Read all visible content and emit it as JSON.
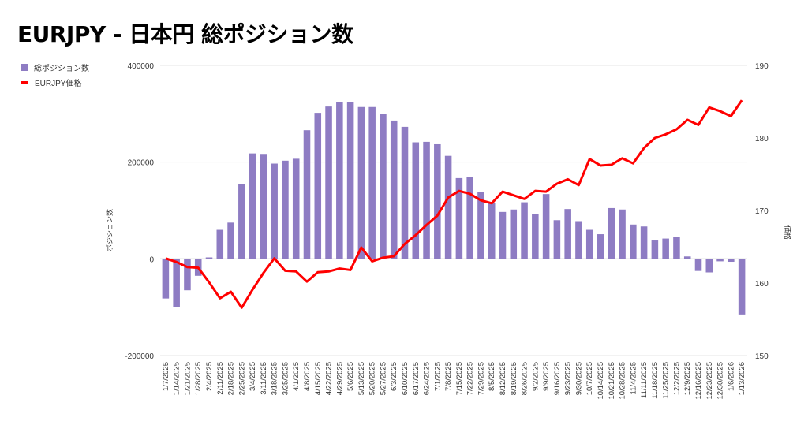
{
  "title": "EURJPY - 日本円 総ポジション数",
  "chart_data": {
    "type": "bar+line",
    "title": "EURJPY - 日本円 総ポジション数",
    "legend_position": "left",
    "ylabel_left": "ポジション数",
    "ylabel_right": "価格",
    "ylim_left": [
      -200000,
      400000
    ],
    "yticks_left": [
      "400000",
      "200000",
      "0",
      "-200000"
    ],
    "ylim_right": [
      150,
      190
    ],
    "yticks_right": [
      "190",
      "180",
      "170",
      "160",
      "150"
    ],
    "categories": [
      "1/7/2025",
      "1/14/2025",
      "1/21/2025",
      "1/28/2025",
      "2/4/2025",
      "2/11/2025",
      "2/18/2025",
      "2/25/2025",
      "3/4/2025",
      "3/11/2025",
      "3/18/2025",
      "3/25/2025",
      "4/1/2025",
      "4/8/2025",
      "4/15/2025",
      "4/22/2025",
      "4/29/2025",
      "5/6/2025",
      "5/13/2025",
      "5/20/2025",
      "5/27/2025",
      "6/3/2025",
      "6/10/2025",
      "6/17/2025",
      "6/24/2025",
      "7/1/2025",
      "7/8/2025",
      "7/15/2025",
      "7/22/2025",
      "7/29/2025",
      "8/5/2025",
      "8/12/2025",
      "8/19/2025",
      "8/26/2025",
      "9/2/2025",
      "9/9/2025",
      "9/16/2025",
      "9/23/2025",
      "9/30/2025",
      "10/7/2025",
      "10/14/2025",
      "10/21/2025",
      "10/28/2025",
      "11/4/2025",
      "11/11/2025",
      "11/18/2025",
      "11/25/2025",
      "12/2/2025",
      "12/9/2025",
      "12/16/2025",
      "12/23/2025",
      "12/30/2025",
      "1/6/2026",
      "1/13/2026"
    ],
    "series": [
      {
        "name": "総ポジション数",
        "type": "bar",
        "axis": "left",
        "color": "#8e7cc3",
        "values": [
          -82000,
          -100000,
          -65000,
          -35000,
          3000,
          60000,
          75000,
          155000,
          218000,
          217000,
          197000,
          203000,
          207000,
          266000,
          302000,
          315000,
          324000,
          325000,
          314000,
          314000,
          300000,
          286000,
          273000,
          241000,
          242000,
          237000,
          213000,
          167000,
          170000,
          139000,
          115000,
          97000,
          102000,
          117000,
          92000,
          134000,
          80000,
          103000,
          78000,
          60000,
          51000,
          105000,
          102000,
          71000,
          67000,
          38000,
          42000,
          45000,
          5000,
          -25000,
          -28000,
          -5000,
          -6000,
          -115000
        ]
      },
      {
        "name": "EURJPY価格",
        "type": "line",
        "axis": "right",
        "color": "#ff0000",
        "values": [
          163.4,
          162.9,
          162.2,
          162.1,
          160.1,
          157.9,
          158.8,
          156.6,
          159.1,
          161.4,
          163.4,
          161.7,
          161.6,
          160.2,
          161.5,
          161.6,
          162.0,
          161.8,
          164.9,
          163.0,
          163.5,
          163.7,
          165.4,
          166.6,
          168.0,
          169.3,
          171.8,
          172.7,
          172.3,
          171.4,
          171.0,
          172.6,
          172.1,
          171.6,
          172.7,
          172.6,
          173.7,
          174.3,
          173.5,
          177.1,
          176.2,
          176.3,
          177.2,
          176.5,
          178.6,
          180.0,
          180.5,
          181.2,
          182.5,
          181.8,
          184.2,
          183.7,
          183.0,
          185.2
        ]
      }
    ]
  }
}
